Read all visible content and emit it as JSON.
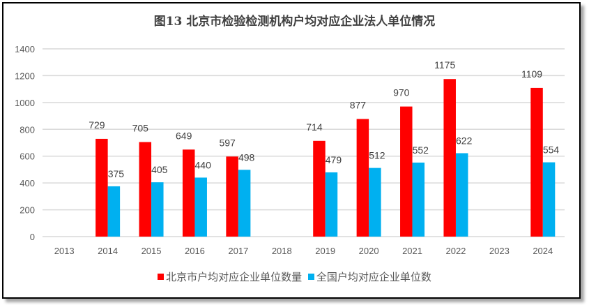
{
  "chart_data": {
    "type": "bar",
    "title": "图13 北京市检验检测机构户均对应企业法人单位情况",
    "xlabel": "",
    "ylabel": "",
    "ylim": [
      0,
      1400
    ],
    "yticks": [
      0,
      200,
      400,
      600,
      800,
      1000,
      1200,
      1400
    ],
    "grid": true,
    "legend_position": "bottom",
    "categories": [
      "2013",
      "2014",
      "2015",
      "2016",
      "2017",
      "2018",
      "2019",
      "2020",
      "2021",
      "2022",
      "2023",
      "2024"
    ],
    "series": [
      {
        "name": "北京市户均对应企业单位数量",
        "color": "#ff0000",
        "values": [
          null,
          729,
          705,
          649,
          597,
          null,
          714,
          877,
          970,
          1175,
          null,
          1109
        ]
      },
      {
        "name": "全国户均对应企业单位数",
        "color": "#00b0f0",
        "values": [
          null,
          375,
          405,
          440,
          498,
          null,
          479,
          512,
          552,
          622,
          null,
          554
        ]
      }
    ]
  }
}
